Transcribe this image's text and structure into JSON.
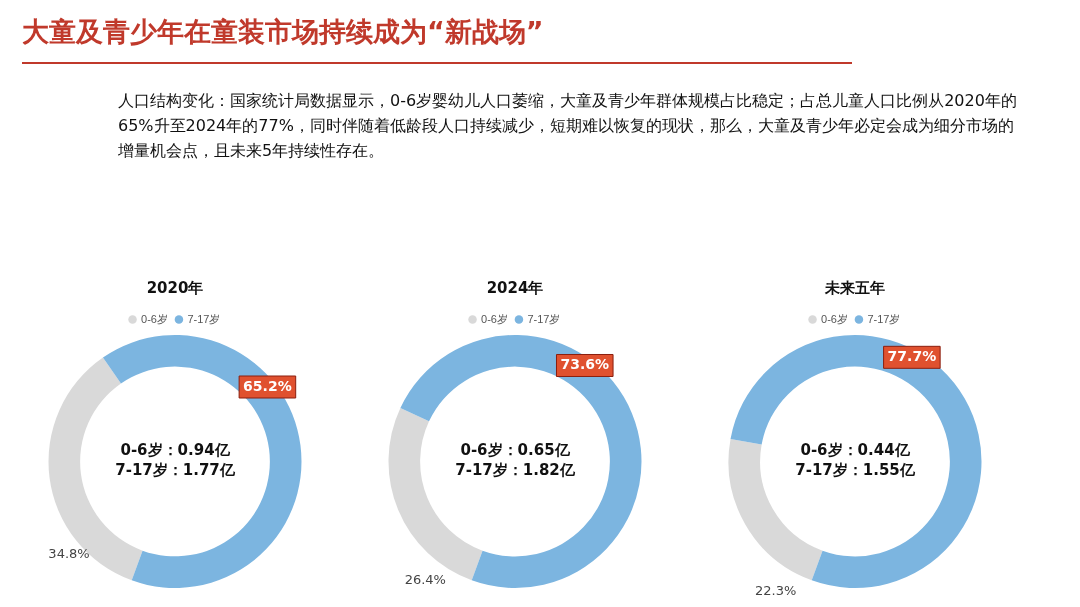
{
  "chart_data": [
    {
      "type": "other",
      "title": "大童及青少年在童装市场持续成为“新战场”",
      "subtitle": "人口结构变化：国家统计局数据显示，0-6岁婴幼儿人口萎缩，大童及青少年群体规模占比稳定；占总儿童人口比例从2020年的65%升至2024年的77%，同时伴随着低龄段人口持续减少，短期难以恢复的现状，那么，大童及青少年必定会成为细分市场的增量机会点，且未来5年持续性存在。"
    },
    {
      "type": "donut",
      "title": "2020年",
      "categories": [
        "0-6岁",
        "7-17岁"
      ],
      "values": [
        34.8,
        65.2
      ],
      "colors": [
        "#d9d9d9",
        "#7cb5e0"
      ],
      "value_labels": [
        "34.8%",
        "65.2%"
      ],
      "legend": "top",
      "annotations": [
        "0-6岁：0.94亿",
        "7-17岁：1.77亿"
      ]
    },
    {
      "type": "donut",
      "title": "2024年",
      "categories": [
        "0-6岁",
        "7-17岁"
      ],
      "values": [
        26.4,
        73.6
      ],
      "colors": [
        "#d9d9d9",
        "#7cb5e0"
      ],
      "value_labels": [
        "26.4%",
        "73.6%"
      ],
      "legend": "top",
      "annotations": [
        "0-6岁：0.65亿",
        "7-17岁：1.82亿"
      ]
    },
    {
      "type": "donut",
      "title": "未来五年",
      "categories": [
        "0-6岁",
        "7-17岁"
      ],
      "values": [
        22.3,
        77.7
      ],
      "colors": [
        "#d9d9d9",
        "#7cb5e0"
      ],
      "value_labels": [
        "22.3%",
        "77.7%"
      ],
      "legend": "top",
      "annotations": [
        "0-6岁：0.44亿",
        "7-17岁：1.55亿"
      ]
    }
  ]
}
